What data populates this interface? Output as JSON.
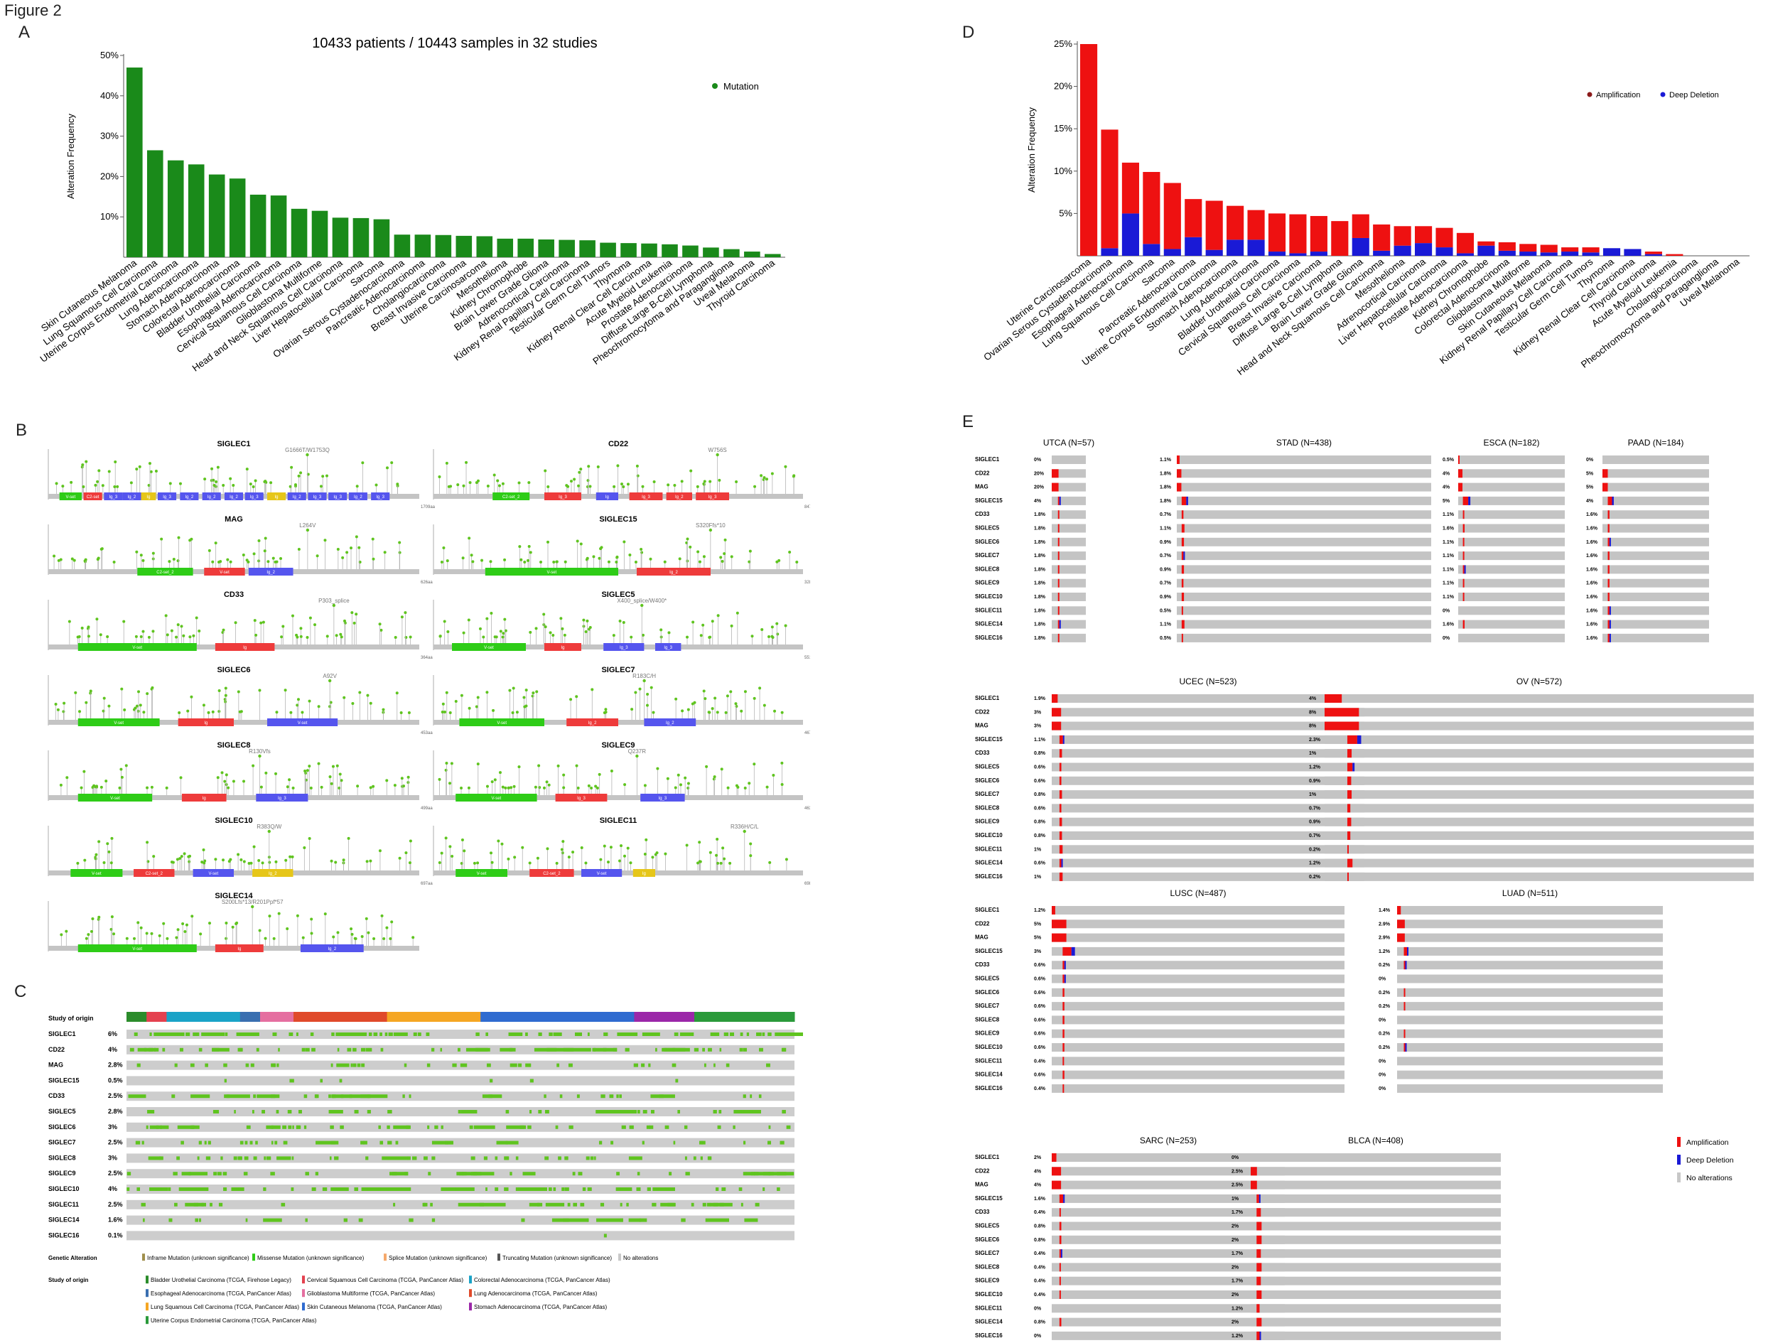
{
  "figure_label": "Figure 2",
  "panels": {
    "A": "A",
    "B": "B",
    "C": "C",
    "D": "D",
    "E": "E"
  },
  "chart_data": [
    {
      "type": "bar",
      "panel": "A",
      "title": "10433 patients / 10443 samples in 32 studies",
      "ylabel": "Alteration Frequency",
      "ylim": [
        0,
        50
      ],
      "yticks": [
        "10%",
        "20%",
        "30%",
        "40%",
        "50%"
      ],
      "legend": [
        {
          "name": "Mutation",
          "color": "#1a8a1a"
        }
      ],
      "legend_position": "top-right",
      "categories": [
        "Skin Cutaneous Melanoma",
        "Lung Squamous Cell Carcinoma",
        "Uterine Corpus Endometrial Carcinoma",
        "Lung Adenocarcinoma",
        "Stomach Adenocarcinoma",
        "Colorectal Adenocarcinoma",
        "Bladder Urothelial Carcinoma",
        "Esophageal Adenocarcinoma",
        "Cervical Squamous Cell Carcinoma",
        "Glioblastoma Multiforme",
        "Head and Neck Squamous Cell Carcinoma",
        "Liver Hepatocellular Carcinoma",
        "Sarcoma",
        "Ovarian Serous Cystadenocarcinoma",
        "Pancreatic Adenocarcinoma",
        "Cholangiocarcinoma",
        "Breast Invasive Carcinoma",
        "Uterine Carcinosarcoma",
        "Mesothelioma",
        "Kidney Chromophobe",
        "Brain Lower Grade Glioma",
        "Adrenocortical Carcinoma",
        "Kidney Renal Papillary Cell Carcinoma",
        "Testicular Germ Cell Tumors",
        "Thymoma",
        "Kidney Renal Clear Cell Carcinoma",
        "Acute Myeloid Leukemia",
        "Prostate Adenocarcinoma",
        "Diffuse Large B-Cell Lymphoma",
        "Pheochromocytoma and Paraganglioma",
        "Uveal Melanoma",
        "Thyroid Carcinoma"
      ],
      "values": [
        47,
        26.5,
        24,
        23,
        20.5,
        19.5,
        15.5,
        15.3,
        12,
        11.5,
        9.8,
        9.7,
        9.4,
        5.6,
        5.6,
        5.5,
        5.3,
        5.2,
        4.6,
        4.6,
        4.4,
        4.3,
        4.2,
        3.6,
        3.5,
        3.4,
        3.2,
        2.9,
        2.4,
        2,
        1.4,
        0.8
      ]
    },
    {
      "type": "bar",
      "panel": "D",
      "ylabel": "Alteration Frequency",
      "ylim": [
        0,
        25
      ],
      "yticks": [
        "5%",
        "10%",
        "15%",
        "20%",
        "25%"
      ],
      "legend_position": "top-right",
      "categories": [
        "Uterine Carcinosarcoma",
        "Ovarian Serous Cystadenocarcinoma",
        "Esophageal Adenocarcinoma",
        "Lung Squamous Cell Carcinoma",
        "Sarcoma",
        "Pancreatic Adenocarcinoma",
        "Uterine Corpus Endometrial Carcinoma",
        "Stomach Adenocarcinoma",
        "Lung Adenocarcinoma",
        "Bladder Urothelial Carcinoma",
        "Cervical Squamous Cell Carcinoma",
        "Breast Invasive Carcinoma",
        "Diffuse Large B-Cell Lymphoma",
        "Brain Lower Grade Glioma",
        "Head and Neck Squamous Cell Carcinoma",
        "Mesothelioma",
        "Adrenocortical Carcinoma",
        "Liver Hepatocellular Carcinoma",
        "Prostate Adenocarcinoma",
        "Kidney Chromophobe",
        "Colorectal Adenocarcinoma",
        "Glioblastoma Multiforme",
        "Skin Cutaneous Melanoma",
        "Kidney Renal Papillary Cell Carcinoma",
        "Testicular Germ Cell Tumors",
        "Thymoma",
        "Kidney Renal Clear Cell Carcinoma",
        "Thyroid Carcinoma",
        "Acute Myeloid Leukemia",
        "Cholangiocarcinoma",
        "Pheochromocytoma and Paraganglioma",
        "Uveal Melanoma"
      ],
      "series": [
        {
          "name": "Amplification",
          "color": "#ee1111",
          "values": [
            25,
            14,
            6,
            8.5,
            7.8,
            4.5,
            5.8,
            4,
            3.5,
            4.5,
            4.6,
            4.2,
            4.1,
            2.8,
            3.1,
            2.3,
            2,
            2.3,
            2.4,
            0.5,
            1,
            0.9,
            0.9,
            0.5,
            0.6,
            0,
            0,
            0.3,
            0.2,
            0,
            0,
            0
          ]
        },
        {
          "name": "Deep Deletion",
          "color": "#1a1ad6",
          "values": [
            0,
            0.9,
            5,
            1.4,
            0.8,
            2.2,
            0.7,
            1.9,
            1.9,
            0.5,
            0.3,
            0.5,
            0,
            2.1,
            0.6,
            1.2,
            1.5,
            1,
            0.3,
            1.2,
            0.6,
            0.5,
            0.4,
            0.5,
            0.4,
            0.9,
            0.8,
            0.2,
            0,
            0,
            0,
            0
          ]
        }
      ]
    }
  ],
  "lollipops": [
    {
      "gene": "SIGLEC1",
      "ann": "G1666T/W1753Q",
      "domains": [
        {
          "t": "V-set",
          "c": "#2ecc17",
          "s": 0.03,
          "e": 0.09
        },
        {
          "t": "C2-set",
          "c": "#ee3b3b",
          "s": 0.095,
          "e": 0.145
        },
        {
          "t": "Ig_3",
          "c": "#5555ee",
          "s": 0.15,
          "e": 0.2
        },
        {
          "t": "Ig_2",
          "c": "#5555ee",
          "s": 0.2,
          "e": 0.25
        },
        {
          "t": "Ig",
          "c": "#e6c619",
          "s": 0.25,
          "e": 0.29
        },
        {
          "t": "Ig_3",
          "c": "#5555ee",
          "s": 0.295,
          "e": 0.345
        },
        {
          "t": "Ig_2",
          "c": "#5555ee",
          "s": 0.355,
          "e": 0.405
        },
        {
          "t": "Ig_2",
          "c": "#5555ee",
          "s": 0.415,
          "e": 0.465
        },
        {
          "t": "Ig_2",
          "c": "#5555ee",
          "s": 0.475,
          "e": 0.525
        },
        {
          "t": "Ig_3",
          "c": "#5555ee",
          "s": 0.53,
          "e": 0.58
        },
        {
          "t": "Ig",
          "c": "#e6c619",
          "s": 0.59,
          "e": 0.64
        },
        {
          "t": "Ig_2",
          "c": "#5555ee",
          "s": 0.645,
          "e": 0.695
        },
        {
          "t": "Ig_3",
          "c": "#5555ee",
          "s": 0.7,
          "e": 0.75
        },
        {
          "t": "Ig_3",
          "c": "#5555ee",
          "s": 0.755,
          "e": 0.805
        },
        {
          "t": "Ig_2",
          "c": "#5555ee",
          "s": 0.81,
          "e": 0.86
        },
        {
          "t": "Ig_3",
          "c": "#5555ee",
          "s": 0.87,
          "e": 0.92
        }
      ],
      "len": "1709aa"
    },
    {
      "gene": "CD22",
      "ann": "W756S",
      "domains": [
        {
          "t": "C2-set_2",
          "c": "#2ecc17",
          "s": 0.16,
          "e": 0.26
        },
        {
          "t": "Ig_3",
          "c": "#ee3b3b",
          "s": 0.3,
          "e": 0.4
        },
        {
          "t": "Ig",
          "c": "#5555ee",
          "s": 0.44,
          "e": 0.5
        },
        {
          "t": "Ig_3",
          "c": "#ee3b3b",
          "s": 0.53,
          "e": 0.62
        },
        {
          "t": "Ig_2",
          "c": "#ee3b3b",
          "s": 0.63,
          "e": 0.7
        },
        {
          "t": "Ig_3",
          "c": "#ee3b3b",
          "s": 0.71,
          "e": 0.8
        }
      ],
      "len": "847aa"
    },
    {
      "gene": "MAG",
      "ann": "L264V",
      "domains": [
        {
          "t": "C2-set_2",
          "c": "#2ecc17",
          "s": 0.24,
          "e": 0.39
        },
        {
          "t": "V-set",
          "c": "#ee3b3b",
          "s": 0.42,
          "e": 0.53
        },
        {
          "t": "Ig_2",
          "c": "#5555ee",
          "s": 0.54,
          "e": 0.66
        }
      ],
      "len": "626aa"
    },
    {
      "gene": "SIGLEC15",
      "ann": "S320Ffs*10",
      "domains": [
        {
          "t": "V-set",
          "c": "#2ecc17",
          "s": 0.14,
          "e": 0.5
        },
        {
          "t": "Ig_2",
          "c": "#ee3b3b",
          "s": 0.55,
          "e": 0.75
        }
      ],
      "len": "328aa"
    },
    {
      "gene": "CD33",
      "ann": "P303_splice",
      "domains": [
        {
          "t": "V-set",
          "c": "#2ecc17",
          "s": 0.08,
          "e": 0.4
        },
        {
          "t": "Ig",
          "c": "#ee3b3b",
          "s": 0.45,
          "e": 0.61
        }
      ],
      "len": "364aa"
    },
    {
      "gene": "SIGLEC5",
      "ann": "X400_splice/W400*",
      "domains": [
        {
          "t": "V-set",
          "c": "#2ecc17",
          "s": 0.05,
          "e": 0.25
        },
        {
          "t": "Ig",
          "c": "#ee3b3b",
          "s": 0.3,
          "e": 0.4
        },
        {
          "t": "Ig_3",
          "c": "#5555ee",
          "s": 0.46,
          "e": 0.57
        },
        {
          "t": "Ig_3",
          "c": "#5555ee",
          "s": 0.6,
          "e": 0.67
        }
      ],
      "len": "551aa"
    },
    {
      "gene": "SIGLEC6",
      "ann": "A92V",
      "domains": [
        {
          "t": "V-set",
          "c": "#2ecc17",
          "s": 0.08,
          "e": 0.3
        },
        {
          "t": "Ig",
          "c": "#ee3b3b",
          "s": 0.35,
          "e": 0.5
        },
        {
          "t": "V-set",
          "c": "#5555ee",
          "s": 0.59,
          "e": 0.78
        }
      ],
      "len": "453aa"
    },
    {
      "gene": "SIGLEC7",
      "ann": "R183C/H",
      "domains": [
        {
          "t": "V-set",
          "c": "#2ecc17",
          "s": 0.07,
          "e": 0.3
        },
        {
          "t": "Ig_2",
          "c": "#ee3b3b",
          "s": 0.36,
          "e": 0.5
        },
        {
          "t": "Ig_2",
          "c": "#5555ee",
          "s": 0.57,
          "e": 0.71
        }
      ],
      "len": "467aa"
    },
    {
      "gene": "SIGLEC8",
      "ann": "R130Vfs",
      "domains": [
        {
          "t": "V-set",
          "c": "#2ecc17",
          "s": 0.08,
          "e": 0.28
        },
        {
          "t": "Ig",
          "c": "#ee3b3b",
          "s": 0.36,
          "e": 0.48
        },
        {
          "t": "Ig_3",
          "c": "#5555ee",
          "s": 0.56,
          "e": 0.7
        }
      ],
      "len": "499aa"
    },
    {
      "gene": "SIGLEC9",
      "ann": "Q237R",
      "domains": [
        {
          "t": "V-set",
          "c": "#2ecc17",
          "s": 0.06,
          "e": 0.28
        },
        {
          "t": "Ig_3",
          "c": "#ee3b3b",
          "s": 0.33,
          "e": 0.47
        },
        {
          "t": "Ig_3",
          "c": "#5555ee",
          "s": 0.56,
          "e": 0.68
        }
      ],
      "len": "463aa"
    },
    {
      "gene": "SIGLEC10",
      "ann": "R383Q/W",
      "domains": [
        {
          "t": "V-set",
          "c": "#2ecc17",
          "s": 0.06,
          "e": 0.2
        },
        {
          "t": "C2-set_2",
          "c": "#ee3b3b",
          "s": 0.23,
          "e": 0.34
        },
        {
          "t": "V-set",
          "c": "#5555ee",
          "s": 0.39,
          "e": 0.5
        },
        {
          "t": "Ig_2",
          "c": "#e6c619",
          "s": 0.55,
          "e": 0.66
        }
      ],
      "len": "697aa"
    },
    {
      "gene": "SIGLEC11",
      "ann": "R336H/C/L",
      "domains": [
        {
          "t": "V-set",
          "c": "#2ecc17",
          "s": 0.06,
          "e": 0.2
        },
        {
          "t": "C2-set_2",
          "c": "#ee3b3b",
          "s": 0.26,
          "e": 0.38
        },
        {
          "t": "V-set",
          "c": "#5555ee",
          "s": 0.4,
          "e": 0.51
        },
        {
          "t": "Ig",
          "c": "#e6c619",
          "s": 0.54,
          "e": 0.6
        }
      ],
      "len": "698aa"
    },
    {
      "gene": "SIGLEC14",
      "ann": "S200Lfs*13/R201Ppf*57",
      "domains": [
        {
          "t": "V-set",
          "c": "#2ecc17",
          "s": 0.08,
          "e": 0.4
        },
        {
          "t": "Ig",
          "c": "#ee3b3b",
          "s": 0.45,
          "e": 0.58
        },
        {
          "t": "Ig_2",
          "c": "#5555ee",
          "s": 0.68,
          "e": 0.85
        }
      ],
      "len": ""
    }
  ],
  "oncoprint_C": {
    "origin_label": "Study of origin",
    "genes": [
      "SIGLEC1",
      "CD22",
      "MAG",
      "SIGLEC15",
      "CD33",
      "SIGLEC5",
      "SIGLEC6",
      "SIGLEC7",
      "SIGLEC8",
      "SIGLEC9",
      "SIGLEC10",
      "SIGLEC11",
      "SIGLEC14",
      "SIGLEC16"
    ],
    "pcts": [
      "6%",
      "4%",
      "2.8%",
      "0.5%",
      "2.5%",
      "2.8%",
      "3%",
      "2.5%",
      "3%",
      "2.5%",
      "4%",
      "2.5%",
      "1.6%",
      "0.1%"
    ],
    "genetic_alteration_label": "Genetic Alteration",
    "alt_legend": [
      "Inframe Mutation (unknown significance)",
      "Missense Mutation (unknown significance)",
      "Splice Mutation (unknown significance)",
      "Truncating Mutation (unknown significance)",
      "No alterations"
    ],
    "alt_colors": [
      "#a08f4d",
      "#2ecc17",
      "#f5a86a",
      "#555555",
      "#c8c8c8"
    ],
    "origin_legend_label": "Study of origin",
    "origin_legend": [
      {
        "t": "Bladder Urothelial Carcinoma (TCGA, Firehose Legacy)",
        "c": "#2b8c2b"
      },
      {
        "t": "Cervical Squamous Cell Carcinoma (TCGA, PanCancer Atlas)",
        "c": "#e4414f"
      },
      {
        "t": "Colorectal Adenocarcinoma (TCGA, PanCancer Atlas)",
        "c": "#1aa3c7"
      },
      {
        "t": "Esophageal Adenocarcinoma (TCGA, PanCancer Atlas)",
        "c": "#3a6fb0"
      },
      {
        "t": "Glioblastoma Multiforme (TCGA, PanCancer Atlas)",
        "c": "#e56fa0"
      },
      {
        "t": "Lung Adenocarcinoma (TCGA, PanCancer Atlas)",
        "c": "#e04a2a"
      },
      {
        "t": "Lung Squamous Cell Carcinoma (TCGA, PanCancer Atlas)",
        "c": "#f5a623"
      },
      {
        "t": "Skin Cutaneous Melanoma (TCGA, PanCancer Atlas)",
        "c": "#2f6bd0"
      },
      {
        "t": "Stomach Adenocarcinoma (TCGA, PanCancer Atlas)",
        "c": "#9b27a8"
      },
      {
        "t": "Uterine Corpus Endometrial Carcinoma (TCGA, PanCancer Atlas)",
        "c": "#2a9a3a"
      }
    ]
  },
  "oncoprint_E": {
    "genes": [
      "SIGLEC1",
      "CD22",
      "MAG",
      "SIGLEC15",
      "CD33",
      "SIGLEC5",
      "SIGLEC6",
      "SIGLEC7",
      "SIGLEC8",
      "SIGLEC9",
      "SIGLEC10",
      "SIGLEC11",
      "SIGLEC14",
      "SIGLEC16"
    ],
    "studies": [
      {
        "title": "UTCA (N=57)",
        "pcts": [
          "0%",
          "20%",
          "20%",
          "4%",
          "1.8%",
          "1.8%",
          "1.8%",
          "1.8%",
          "1.8%",
          "1.8%",
          "1.8%",
          "1.8%",
          "1.8%",
          "1.8%"
        ]
      },
      {
        "title": "STAD (N=438)",
        "pcts": [
          "1.1%",
          "1.8%",
          "1.8%",
          "1.8%",
          "0.7%",
          "1.1%",
          "0.9%",
          "0.7%",
          "0.9%",
          "0.7%",
          "0.9%",
          "0.5%",
          "1.1%",
          "0.5%"
        ]
      },
      {
        "title": "ESCA (N=182)",
        "pcts": [
          "0.5%",
          "4%",
          "4%",
          "5%",
          "1.1%",
          "1.6%",
          "1.1%",
          "1.1%",
          "1.1%",
          "1.1%",
          "1.1%",
          "0%",
          "1.6%",
          "0%"
        ]
      },
      {
        "title": "PAAD (N=184)",
        "pcts": [
          "0%",
          "5%",
          "5%",
          "4%",
          "1.6%",
          "1.6%",
          "1.6%",
          "1.6%",
          "1.6%",
          "1.6%",
          "1.6%",
          "1.6%",
          "1.6%",
          "1.6%"
        ]
      },
      {
        "title": "UCEC (N=523)",
        "pcts": [
          "1.9%",
          "3%",
          "3%",
          "1.1%",
          "0.8%",
          "0.6%",
          "0.6%",
          "0.8%",
          "0.6%",
          "0.8%",
          "0.8%",
          "1%",
          "0.6%",
          "1%"
        ]
      },
      {
        "title": "OV (N=572)",
        "pcts": [
          "4%",
          "8%",
          "8%",
          "2.3%",
          "1%",
          "1.2%",
          "0.9%",
          "1%",
          "0.7%",
          "0.9%",
          "0.7%",
          "0.2%",
          "1.2%",
          "0.2%"
        ]
      },
      {
        "title": "LUSC (N=487)",
        "pcts": [
          "1.2%",
          "5%",
          "5%",
          "3%",
          "0.6%",
          "0.6%",
          "0.6%",
          "0.6%",
          "0.6%",
          "0.6%",
          "0.6%",
          "0.4%",
          "0.6%",
          "0.4%"
        ]
      },
      {
        "title": "LUAD (N=511)",
        "pcts": [
          "1.4%",
          "2.9%",
          "2.9%",
          "1.2%",
          "0.2%",
          "0%",
          "0.2%",
          "0.2%",
          "0%",
          "0.2%",
          "0.2%",
          "0%",
          "0%",
          "0%"
        ]
      },
      {
        "title": "SARC (N=253)",
        "pcts": [
          "2%",
          "4%",
          "4%",
          "1.6%",
          "0.4%",
          "0.8%",
          "0.8%",
          "0.4%",
          "0.4%",
          "0.4%",
          "0.4%",
          "0%",
          "0.8%",
          "0%"
        ]
      },
      {
        "title": "BLCA (N=408)",
        "pcts": [
          "0%",
          "2.5%",
          "2.5%",
          "1%",
          "1.7%",
          "2%",
          "2%",
          "1.7%",
          "2%",
          "1.7%",
          "2%",
          "1.2%",
          "2%",
          "1.2%"
        ]
      }
    ],
    "legend": [
      {
        "t": "Amplification",
        "c": "#ee1111"
      },
      {
        "t": "Deep Deletion",
        "c": "#1a1ad6"
      },
      {
        "t": "No alterations",
        "c": "#c8c8c8"
      }
    ]
  }
}
